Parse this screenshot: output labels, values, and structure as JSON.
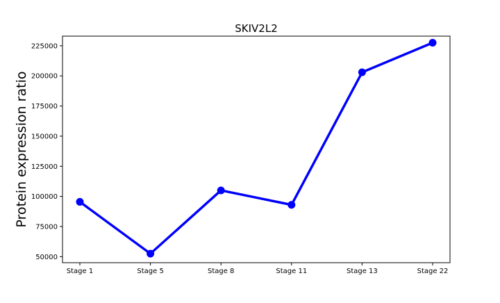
{
  "chart_data": {
    "type": "line",
    "title": "SKIV2L2",
    "xlabel": "",
    "ylabel": "Protein expression ratio",
    "categories": [
      "Stage 1",
      "Stage 5",
      "Stage 8",
      "Stage 11",
      "Stage 13",
      "Stage 22"
    ],
    "series": [
      {
        "values": [
          95500,
          52500,
          105000,
          93000,
          203000,
          227500
        ],
        "color": "#0000ff",
        "marker": "circle"
      }
    ],
    "ylim": [
      45000,
      233000
    ],
    "yticks": [
      50000,
      75000,
      100000,
      125000,
      150000,
      175000,
      200000,
      225000
    ],
    "ytick_labels": [
      "50000",
      "75000",
      "100000",
      "125000",
      "150000",
      "175000",
      "200000",
      "225000"
    ],
    "grid": false,
    "legend": "none"
  }
}
